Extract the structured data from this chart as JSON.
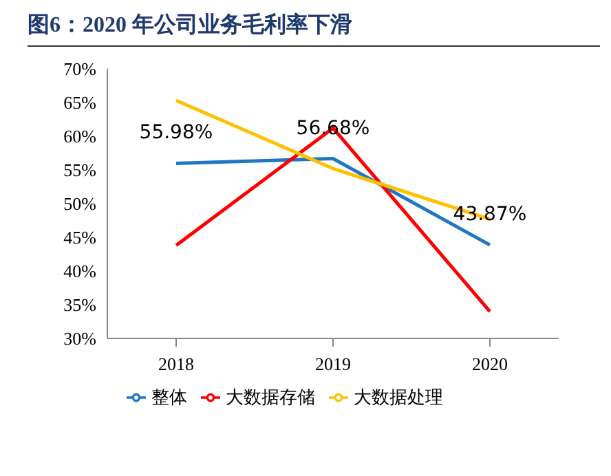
{
  "chart_data": {
    "type": "line",
    "title": "图6：2020 年公司业务毛利率下滑",
    "categories": [
      "2018",
      "2019",
      "2020"
    ],
    "series": [
      {
        "name": "整体",
        "color": "#1f77c4",
        "values": [
          55.98,
          56.68,
          43.87
        ],
        "value_labels": [
          "55.98%",
          "56.68%",
          "43.87%"
        ]
      },
      {
        "name": "大数据存储",
        "color": "#ff0000",
        "values": [
          43.8,
          61.2,
          34.0
        ]
      },
      {
        "name": "大数据处理",
        "color": "#ffc000",
        "values": [
          65.3,
          55.2,
          47.7
        ]
      }
    ],
    "ylim": [
      30,
      70
    ],
    "yticks": [
      {
        "value": 30,
        "label": "30%"
      },
      {
        "value": 35,
        "label": "35%"
      },
      {
        "value": 40,
        "label": "40%"
      },
      {
        "value": 45,
        "label": "45%"
      },
      {
        "value": 50,
        "label": "50%"
      },
      {
        "value": 55,
        "label": "55%"
      },
      {
        "value": 60,
        "label": "60%"
      },
      {
        "value": 65,
        "label": "65%"
      },
      {
        "value": 70,
        "label": "70%"
      }
    ],
    "grid": false,
    "legend": "bottom",
    "marker": "none",
    "line_style": "solid"
  }
}
